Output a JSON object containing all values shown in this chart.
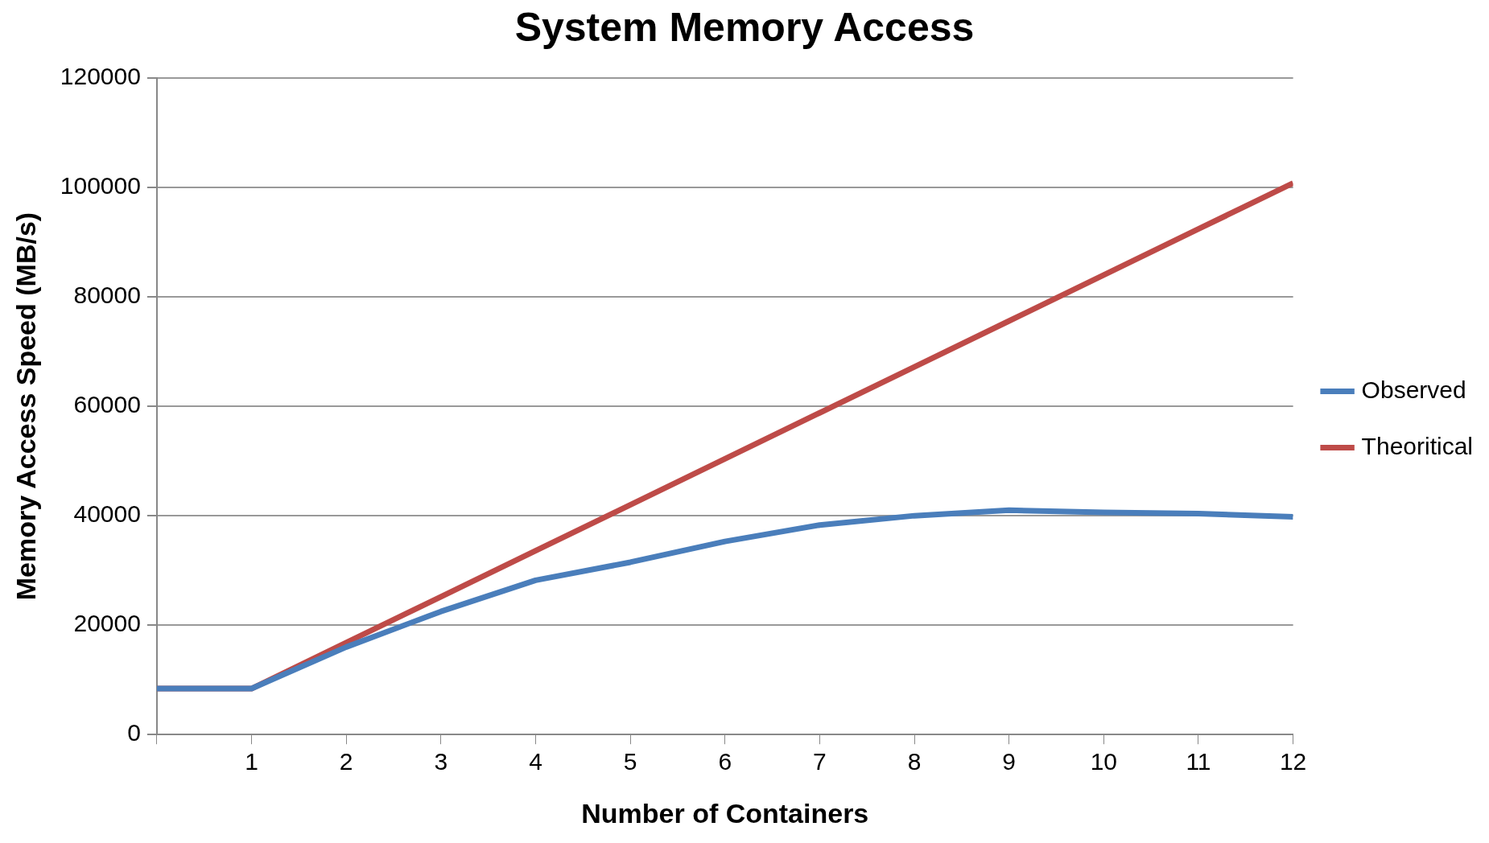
{
  "chart_data": {
    "type": "line",
    "title": "System Memory Access",
    "xlabel": "Number of Containers",
    "ylabel": "Memory Access Speed (MB/s)",
    "x": [
      0,
      1,
      2,
      3,
      4,
      5,
      6,
      7,
      8,
      9,
      10,
      11,
      12
    ],
    "series": [
      {
        "name": "Observed",
        "color": "#4a7ebb",
        "values": [
          8400,
          8400,
          16000,
          22500,
          28200,
          31500,
          35300,
          38300,
          40000,
          41000,
          40600,
          40400,
          39800
        ]
      },
      {
        "name": "Theoritical",
        "color": "#be4b48",
        "values": [
          8400,
          8400,
          16800,
          25200,
          33600,
          42000,
          50400,
          58800,
          67200,
          75600,
          84000,
          92400,
          100800
        ]
      }
    ],
    "xlim": [
      0,
      12
    ],
    "xticks": [
      {
        "value": 0,
        "label": null
      },
      1,
      2,
      3,
      4,
      5,
      6,
      7,
      8,
      9,
      10,
      11,
      12
    ],
    "ylim": [
      0,
      120000
    ],
    "yticks": [
      0,
      20000,
      40000,
      60000,
      80000,
      100000,
      120000
    ],
    "grid": "y",
    "legend": "right",
    "marker": "none",
    "line_style": "solid"
  }
}
